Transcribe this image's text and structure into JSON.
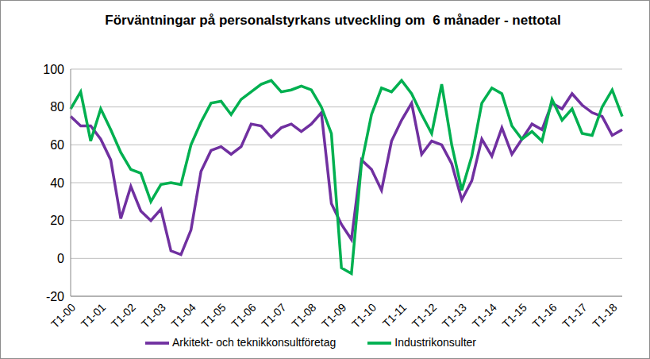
{
  "chart_data": {
    "type": "line",
    "title": "Förväntningar på personalstyrkans utveckling om  6 månader - nettotal",
    "categories": [
      "T1-00",
      null,
      null,
      "T1-01",
      null,
      null,
      "T1-02",
      null,
      null,
      "T1-03",
      null,
      null,
      "T1-04",
      null,
      null,
      "T1-05",
      null,
      null,
      "T1-06",
      null,
      null,
      "T1-07",
      null,
      null,
      "T1-08",
      null,
      null,
      "T1-09",
      null,
      null,
      "T1-10",
      null,
      null,
      "T1-11",
      null,
      null,
      "T1-12",
      null,
      null,
      "T1-13",
      null,
      null,
      "T1-14",
      null,
      null,
      "T1-15",
      null,
      null,
      "T1-16",
      null,
      null,
      "T1-17",
      null,
      null,
      "T1-18",
      null
    ],
    "series": [
      {
        "name": "Arkitekt- och teknikkonsultföretag",
        "color": "#7030a0",
        "values": [
          75,
          70,
          70,
          63,
          52,
          21,
          38,
          25,
          20,
          26,
          4,
          2,
          15,
          46,
          57,
          59,
          55,
          59,
          71,
          70,
          64,
          69,
          71,
          67,
          71,
          77,
          29,
          18,
          10,
          52,
          47,
          36,
          62,
          73,
          82,
          55,
          62,
          60,
          50,
          31,
          41,
          63,
          54,
          69,
          55,
          63,
          71,
          68,
          82,
          79,
          87,
          81,
          77,
          75,
          65,
          68
        ]
      },
      {
        "name": "Industrikonsulter",
        "color": "#00b050",
        "values": [
          79,
          88,
          62,
          79,
          68,
          56,
          47,
          45,
          30,
          39,
          40,
          39,
          60,
          72,
          82,
          83,
          76,
          84,
          88,
          92,
          94,
          88,
          89,
          91,
          89,
          80,
          66,
          -5,
          -8,
          50,
          76,
          90,
          88,
          94,
          87,
          76,
          66,
          92,
          60,
          36,
          54,
          82,
          90,
          87,
          70,
          63,
          67,
          62,
          84,
          73,
          79,
          66,
          65,
          80,
          89,
          75
        ]
      }
    ],
    "ylim": [
      -20,
      100
    ],
    "yticks": [
      -20,
      0,
      20,
      40,
      60,
      80,
      100
    ],
    "grid": true,
    "legend": "bottom"
  }
}
